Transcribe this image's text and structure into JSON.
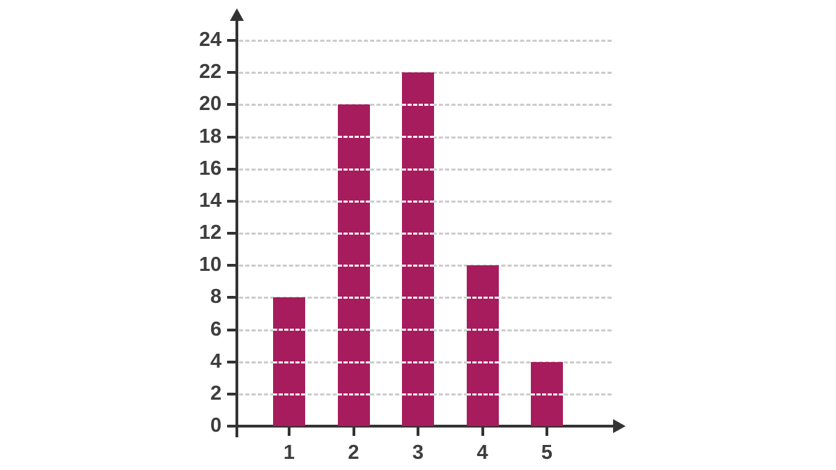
{
  "chart_data": {
    "type": "bar",
    "title": "",
    "xlabel": "",
    "ylabel": "",
    "categories": [
      "1",
      "2",
      "3",
      "4",
      "5"
    ],
    "values": [
      8,
      20,
      22,
      10,
      4
    ],
    "ylim": [
      0,
      24
    ],
    "ytick_step": 2,
    "ytick_labels": [
      "0",
      "2",
      "4",
      "6",
      "8",
      "10",
      "12",
      "14",
      "16",
      "18",
      "20",
      "22",
      "24"
    ],
    "grid": "dashed-horizontal",
    "legend": "none",
    "colors": {
      "bar": "#a61c5d",
      "axis": "#333333",
      "tick_label": "#3d3d3d",
      "gridline": "#cccccc",
      "bar_gridline_overlay": "#ffffff",
      "background": "#ffffff"
    }
  }
}
